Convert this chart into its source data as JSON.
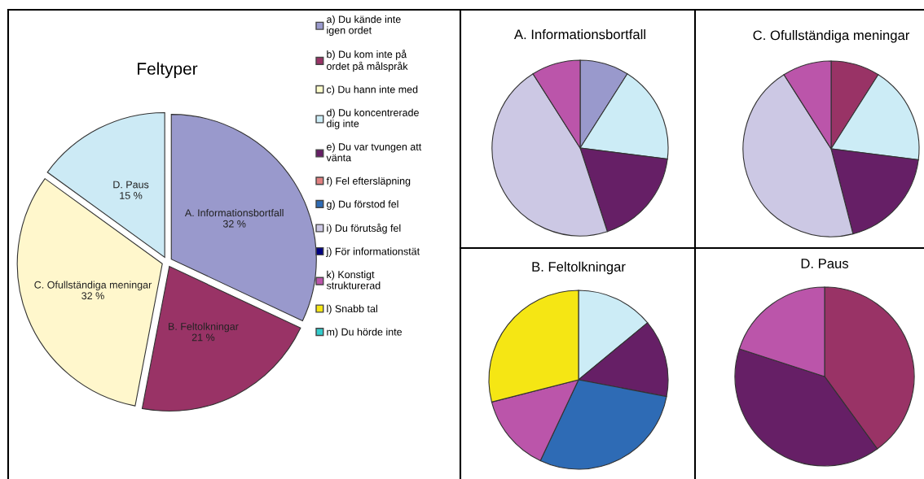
{
  "chart_data": [
    {
      "type": "pie",
      "title": "Feltyper",
      "categories": [
        "A. Informationsbortfall",
        "B. Feltolkningar",
        "C. Ofullständiga meningar",
        "D. Paus"
      ],
      "values": [
        32,
        21,
        32,
        15
      ],
      "value_labels": [
        "32 %",
        "21 %",
        "32 %",
        "15 %"
      ],
      "colors": [
        "#9999cc",
        "#993366",
        "#fff7cc",
        "#cceaf5"
      ],
      "legend": false
    },
    {
      "type": "pie",
      "title": "A. Informationsbortfall",
      "legend": "left",
      "categories": [
        "a) Du kände inte\nigen ordet",
        "b) Du kom inte på\nordet på målspråk",
        "c) Du hann inte med",
        "d) Du koncentrerade\ndig inte",
        "e) Du var tvungen att\nvänta",
        "f) Fel eftersläpning",
        "g) Du förstod fel",
        "i) Du förutsåg fel",
        "j) För informationstät",
        "k) Konstigt\nstrukturerad",
        "l) Snabb tal",
        "m) Du hörde inte"
      ],
      "colors": [
        "#9999cc",
        "#993366",
        "#ffffcc",
        "#ccecf6",
        "#661f66",
        "#e08080",
        "#2e6bb5",
        "#ccc8e4",
        "#000080",
        "#bb55aa",
        "#f5e614",
        "#33cccc"
      ],
      "values": [
        9,
        null,
        null,
        18,
        18,
        null,
        null,
        46,
        null,
        9,
        null,
        null
      ]
    },
    {
      "type": "pie",
      "title": "C. Ofullständiga meningar",
      "legend": false,
      "categories": [
        null,
        null,
        null,
        null,
        null,
        null,
        null,
        null,
        null,
        null,
        null,
        null
      ],
      "colors": [
        "#9999cc",
        "#993366",
        "#ffffcc",
        "#ccecf6",
        "#661f66",
        "#e08080",
        "#2e6bb5",
        "#ccc8e4",
        "#000080",
        "#bb55aa",
        "#f5e614",
        "#33cccc"
      ],
      "values": [
        null,
        9,
        null,
        18,
        19,
        null,
        null,
        45,
        null,
        9,
        null,
        null
      ]
    },
    {
      "type": "pie",
      "title": "B. Feltolkningar",
      "legend": false,
      "categories": [
        null,
        null,
        null,
        null,
        null,
        null,
        null,
        null,
        null,
        null,
        null,
        null
      ],
      "colors": [
        "#9999cc",
        "#993366",
        "#ffffcc",
        "#ccecf6",
        "#661f66",
        "#e08080",
        "#2e6bb5",
        "#ccc8e4",
        "#000080",
        "#bb55aa",
        "#f5e614",
        "#33cccc"
      ],
      "values": [
        null,
        null,
        null,
        14,
        14,
        null,
        29,
        null,
        null,
        14,
        29,
        null
      ]
    },
    {
      "type": "pie",
      "title": "D. Paus",
      "legend": false,
      "categories": [
        null,
        null,
        null,
        null,
        null,
        null,
        null,
        null,
        null,
        null,
        null,
        null
      ],
      "colors": [
        "#9999cc",
        "#993366",
        "#ffffcc",
        "#ccecf6",
        "#661f66",
        "#e08080",
        "#2e6bb5",
        "#ccc8e4",
        "#000080",
        "#bb55aa",
        "#f5e614",
        "#33cccc"
      ],
      "values": [
        null,
        40,
        null,
        null,
        40,
        null,
        null,
        null,
        null,
        20,
        null,
        null
      ]
    }
  ]
}
